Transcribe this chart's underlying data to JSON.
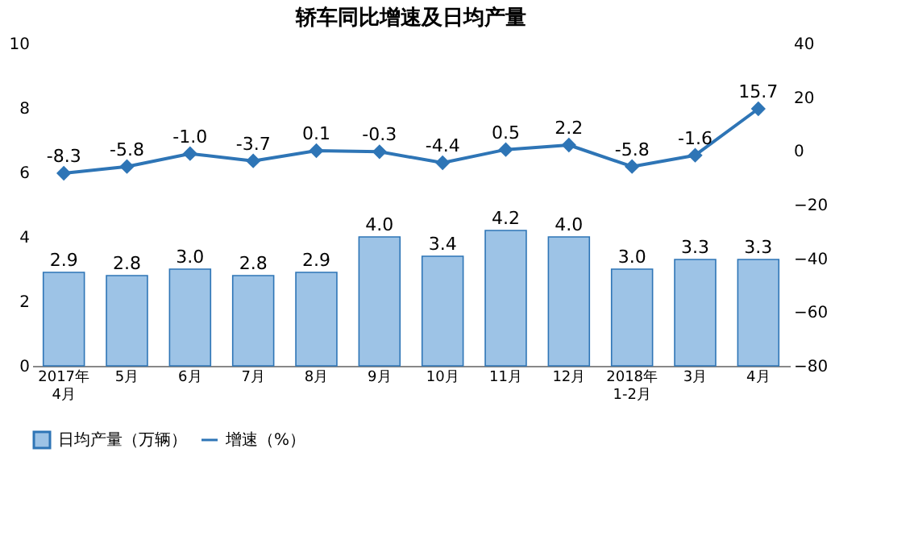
{
  "chart_data": {
    "type": "bar",
    "title": "轿车同比增速及日均产量",
    "categories": [
      "2017年\n4月",
      "5月",
      "6月",
      "7月",
      "8月",
      "9月",
      "10月",
      "11月",
      "12月",
      "2018年\n1-2月",
      "3月",
      "4月"
    ],
    "series": [
      {
        "name": "日均产量（万辆）",
        "color": "#9dc3e6",
        "values": [
          2.9,
          2.8,
          3.0,
          2.8,
          2.9,
          4.0,
          3.4,
          4.2,
          4.0,
          3.0,
          3.3,
          3.3
        ],
        "value_labels": [
          "2.9",
          "2.8",
          "3.0",
          "2.8",
          "2.9",
          "4.0",
          "3.4",
          "4.2",
          "4.0",
          "3.0",
          "3.3",
          "3.3"
        ]
      },
      {
        "name": "增速（%）",
        "type": "line",
        "axis": "y2",
        "color": "#2e75b6",
        "values": [
          -8.3,
          -5.8,
          -1.0,
          -3.7,
          0.1,
          -0.3,
          -4.4,
          0.5,
          2.2,
          -5.8,
          -1.6,
          15.7
        ],
        "value_labels": [
          "-8.3",
          "-5.8",
          "-1.0",
          "-3.7",
          "0.1",
          "-0.3",
          "-4.4",
          "0.5",
          "2.2",
          "-5.8",
          "-1.6",
          "15.7"
        ]
      }
    ],
    "ylim": [
      0,
      10
    ],
    "yticks": [
      0,
      2,
      4,
      6,
      8,
      10
    ],
    "y2lim": [
      -80,
      40
    ],
    "y2ticks": [
      -80,
      -60,
      -40,
      -20,
      0,
      20,
      40
    ],
    "grid": false,
    "legend": "bottom",
    "marker": "diamond",
    "line_style": "solid"
  }
}
